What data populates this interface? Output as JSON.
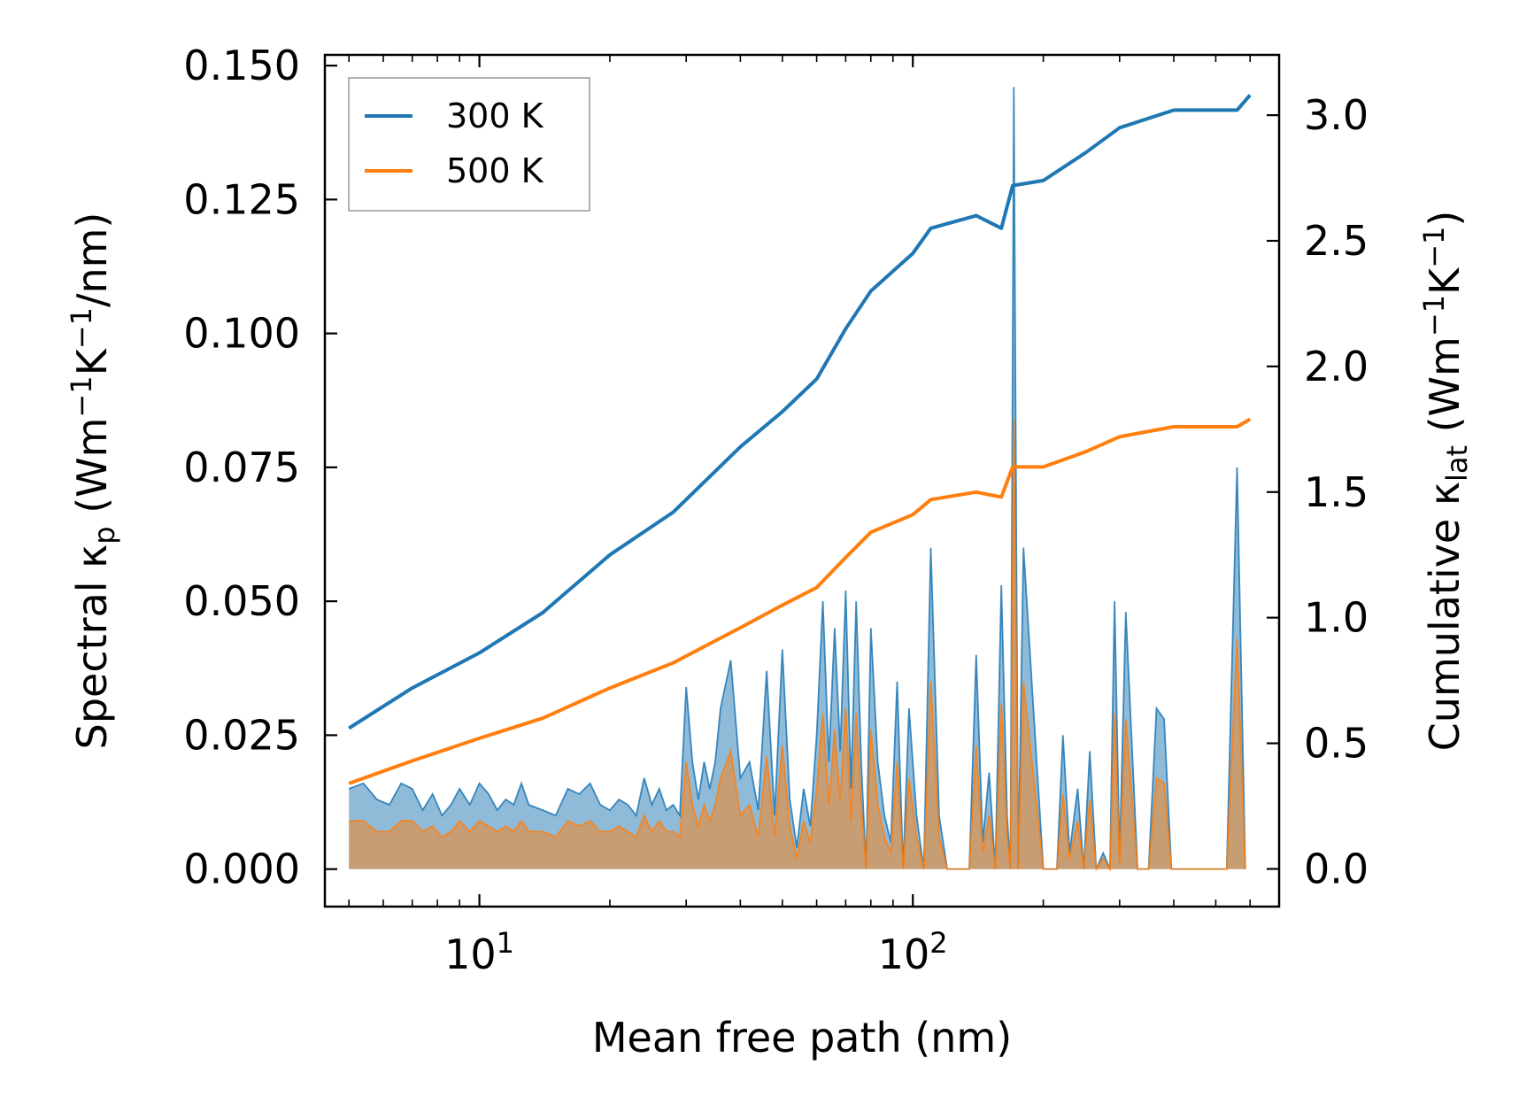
{
  "chart_data": {
    "type": "line",
    "xscale": "log",
    "xlim": [
      4.4,
      700
    ],
    "xticks": [
      10,
      100
    ],
    "xtick_labels": [
      {
        "base": "10",
        "exp": "1"
      },
      {
        "base": "10",
        "exp": "2"
      }
    ],
    "xlabel": "Mean free path (nm)",
    "left_axis": {
      "label_parts": [
        "Spectral κ",
        "p",
        " (Wm",
        "−1",
        "K",
        "−1",
        "/nm)"
      ],
      "ylim": [
        -0.007,
        0.152
      ],
      "ticks": [
        0.0,
        0.025,
        0.05,
        0.075,
        0.1,
        0.125,
        0.15
      ],
      "tick_labels": [
        "0.000",
        "0.025",
        "0.050",
        "0.075",
        "0.100",
        "0.125",
        "0.150"
      ]
    },
    "right_axis": {
      "label_parts": [
        "Cumulative κ",
        "lat",
        " (Wm",
        "−1",
        "K",
        "−1",
        ")"
      ],
      "ylim": [
        -0.15,
        3.24
      ],
      "ticks": [
        0.0,
        0.5,
        1.0,
        1.5,
        2.0,
        2.5,
        3.0
      ],
      "tick_labels": [
        "0.0",
        "0.5",
        "1.0",
        "1.5",
        "2.0",
        "2.5",
        "3.0"
      ]
    },
    "legend": {
      "position": "top-left",
      "entries": [
        "300 K",
        "500 K"
      ]
    },
    "series": [
      {
        "name": "300 K",
        "color": "#1f77b4",
        "cumulative": {
          "x": [
            5,
            7,
            10,
            14,
            20,
            28,
            40,
            50,
            60,
            70,
            80,
            100,
            110,
            140,
            160,
            170,
            200,
            250,
            300,
            400,
            560,
            600
          ],
          "y": [
            0.56,
            0.72,
            0.86,
            1.02,
            1.25,
            1.42,
            1.68,
            1.82,
            1.95,
            2.15,
            2.3,
            2.45,
            2.55,
            2.6,
            2.55,
            2.72,
            2.74,
            2.85,
            2.95,
            3.02,
            3.02,
            3.08
          ]
        },
        "spectral": {
          "x": [
            5,
            5.4,
            5.8,
            6.2,
            6.6,
            7.0,
            7.4,
            7.8,
            8.2,
            8.6,
            9.0,
            9.5,
            10.0,
            10.5,
            11.0,
            11.5,
            12.0,
            12.5,
            13.0,
            14.0,
            15.0,
            16.0,
            17.0,
            18.0,
            19.0,
            20.0,
            21.0,
            22.0,
            23.0,
            24.0,
            25.0,
            26.0,
            27.0,
            28.0,
            29.0,
            30.0,
            31.0,
            32.0,
            33.0,
            34.0,
            35.0,
            36.0,
            38.0,
            40.0,
            42.0,
            44.0,
            46.0,
            48.0,
            50.0,
            52.0,
            54.0,
            56.0,
            58.0,
            60.0,
            62.0,
            64.0,
            66.0,
            68.0,
            70.0,
            72.0,
            74.0,
            76.0,
            78.0,
            80.0,
            83.0,
            86.0,
            89.0,
            92.0,
            95.0,
            98.0,
            102.0,
            106.0,
            110.0,
            115.0,
            120.0,
            125.0,
            130.0,
            135.0,
            140.0,
            145.0,
            150.0,
            155.0,
            160.0,
            165.0,
            168.0,
            171.0,
            175.0,
            180.0,
            200.0,
            215.0,
            222.0,
            230.0,
            240.0,
            248.0,
            256.0,
            265.0,
            275.0,
            285.0,
            292.0,
            300.0,
            310.0,
            330.0,
            350.0,
            365.0,
            380.0,
            395.0,
            420.0,
            480.0,
            530.0,
            560.0,
            585.0
          ],
          "y": [
            0.015,
            0.016,
            0.013,
            0.012,
            0.016,
            0.015,
            0.011,
            0.014,
            0.01,
            0.012,
            0.015,
            0.012,
            0.016,
            0.014,
            0.011,
            0.013,
            0.012,
            0.016,
            0.012,
            0.011,
            0.01,
            0.015,
            0.014,
            0.016,
            0.012,
            0.011,
            0.013,
            0.012,
            0.01,
            0.017,
            0.012,
            0.015,
            0.011,
            0.012,
            0.01,
            0.034,
            0.02,
            0.013,
            0.02,
            0.015,
            0.02,
            0.03,
            0.039,
            0.017,
            0.02,
            0.011,
            0.037,
            0.01,
            0.041,
            0.013,
            0.004,
            0.015,
            0.008,
            0.025,
            0.05,
            0.02,
            0.045,
            0.022,
            0.052,
            0.015,
            0.05,
            0.02,
            0.0,
            0.045,
            0.02,
            0.01,
            0.005,
            0.035,
            0.0,
            0.03,
            0.01,
            0.0,
            0.06,
            0.01,
            0.0,
            0.0,
            0.0,
            0.0,
            0.04,
            0.005,
            0.018,
            0.0,
            0.053,
            0.01,
            0.0,
            0.146,
            0.0,
            0.06,
            0.0,
            0.0,
            0.025,
            0.003,
            0.015,
            0.0,
            0.022,
            0.0,
            0.003,
            0.0,
            0.05,
            0.002,
            0.048,
            0.0,
            0.0,
            0.03,
            0.028,
            0.0,
            0.0,
            0.0,
            0.0,
            0.075,
            0.0
          ]
        }
      },
      {
        "name": "500 K",
        "color": "#ff7f0e",
        "cumulative": {
          "x": [
            5,
            7,
            10,
            14,
            20,
            28,
            40,
            50,
            60,
            70,
            80,
            100,
            110,
            140,
            160,
            170,
            200,
            250,
            300,
            400,
            560,
            600
          ],
          "y": [
            0.34,
            0.43,
            0.52,
            0.6,
            0.72,
            0.82,
            0.96,
            1.05,
            1.12,
            1.24,
            1.34,
            1.41,
            1.47,
            1.5,
            1.48,
            1.6,
            1.6,
            1.66,
            1.72,
            1.76,
            1.76,
            1.79
          ]
        },
        "spectral": {
          "x": [
            5,
            5.4,
            5.8,
            6.2,
            6.6,
            7.0,
            7.4,
            7.8,
            8.2,
            8.6,
            9.0,
            9.5,
            10.0,
            10.5,
            11.0,
            11.5,
            12.0,
            12.5,
            13.0,
            14.0,
            15.0,
            16.0,
            17.0,
            18.0,
            19.0,
            20.0,
            21.0,
            22.0,
            23.0,
            24.0,
            25.0,
            26.0,
            27.0,
            28.0,
            29.0,
            30.0,
            31.0,
            32.0,
            33.0,
            34.0,
            35.0,
            36.0,
            38.0,
            40.0,
            42.0,
            44.0,
            46.0,
            48.0,
            50.0,
            52.0,
            54.0,
            56.0,
            58.0,
            60.0,
            62.0,
            64.0,
            66.0,
            68.0,
            70.0,
            72.0,
            74.0,
            76.0,
            78.0,
            80.0,
            83.0,
            86.0,
            89.0,
            92.0,
            95.0,
            98.0,
            102.0,
            106.0,
            110.0,
            115.0,
            120.0,
            125.0,
            130.0,
            135.0,
            140.0,
            145.0,
            150.0,
            155.0,
            160.0,
            165.0,
            168.0,
            171.0,
            175.0,
            180.0,
            200.0,
            215.0,
            222.0,
            230.0,
            240.0,
            248.0,
            256.0,
            265.0,
            275.0,
            285.0,
            292.0,
            300.0,
            310.0,
            330.0,
            350.0,
            365.0,
            380.0,
            395.0,
            420.0,
            480.0,
            530.0,
            560.0,
            585.0
          ],
          "y": [
            0.009,
            0.009,
            0.007,
            0.007,
            0.009,
            0.009,
            0.007,
            0.008,
            0.006,
            0.007,
            0.009,
            0.007,
            0.009,
            0.008,
            0.007,
            0.008,
            0.007,
            0.009,
            0.007,
            0.007,
            0.006,
            0.009,
            0.008,
            0.009,
            0.007,
            0.007,
            0.008,
            0.007,
            0.006,
            0.01,
            0.007,
            0.009,
            0.007,
            0.007,
            0.006,
            0.02,
            0.012,
            0.008,
            0.012,
            0.009,
            0.012,
            0.017,
            0.022,
            0.01,
            0.012,
            0.006,
            0.021,
            0.006,
            0.023,
            0.008,
            0.002,
            0.009,
            0.005,
            0.015,
            0.029,
            0.012,
            0.026,
            0.013,
            0.03,
            0.009,
            0.029,
            0.012,
            0.0,
            0.026,
            0.012,
            0.006,
            0.003,
            0.02,
            0.0,
            0.017,
            0.006,
            0.0,
            0.035,
            0.006,
            0.0,
            0.0,
            0.0,
            0.0,
            0.023,
            0.003,
            0.01,
            0.0,
            0.031,
            0.006,
            0.0,
            0.084,
            0.0,
            0.035,
            0.0,
            0.0,
            0.014,
            0.002,
            0.009,
            0.0,
            0.013,
            0.0,
            0.002,
            0.0,
            0.029,
            0.001,
            0.028,
            0.0,
            0.0,
            0.017,
            0.016,
            0.0,
            0.0,
            0.0,
            0.0,
            0.043,
            0.0
          ]
        }
      }
    ]
  }
}
